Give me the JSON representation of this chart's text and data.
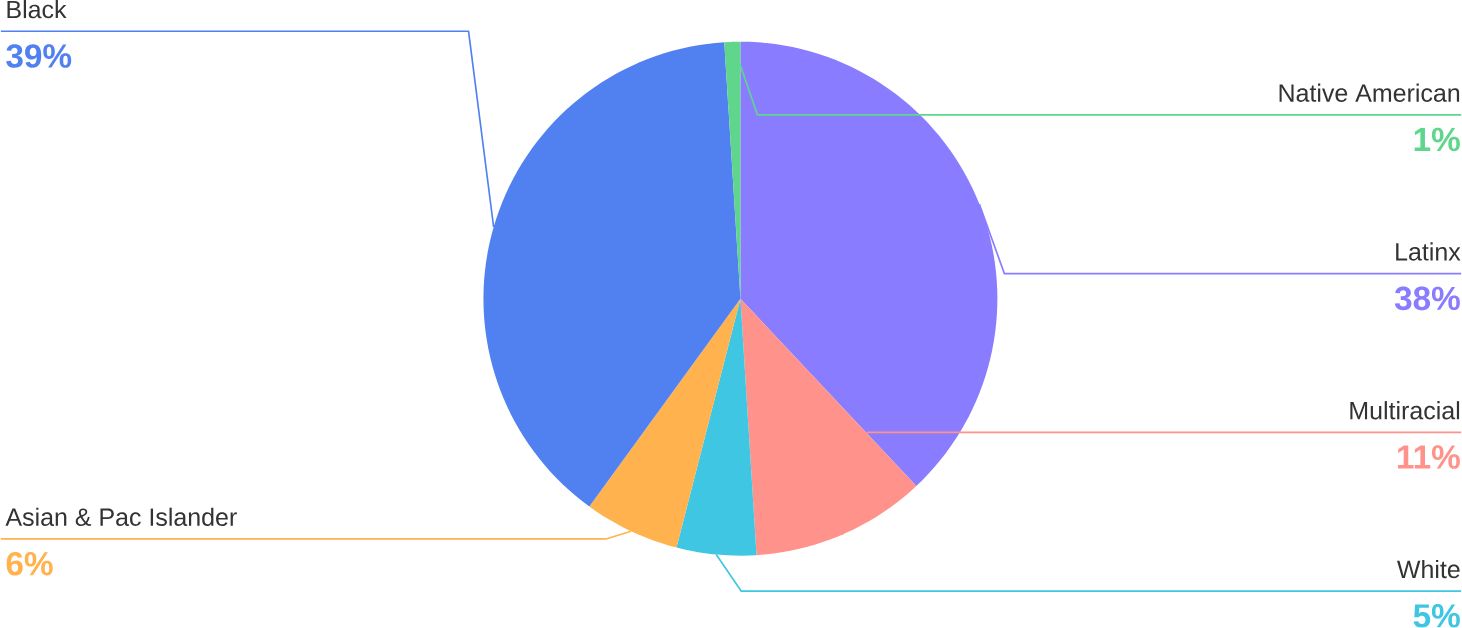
{
  "chart_data": {
    "type": "pie",
    "categories": [
      "Latinx",
      "Multiracial",
      "White",
      "Asian & Pac Islander",
      "Black",
      "Native American"
    ],
    "values": [
      38,
      11,
      5,
      6,
      39,
      1
    ],
    "value_labels": [
      "38%",
      "11%",
      "5%",
      "6%",
      "39%",
      "1%"
    ],
    "colors": [
      "#8a7cff",
      "#ff928a",
      "#3fc6e2",
      "#ffb24e",
      "#5181f0",
      "#5fd68c"
    ]
  }
}
